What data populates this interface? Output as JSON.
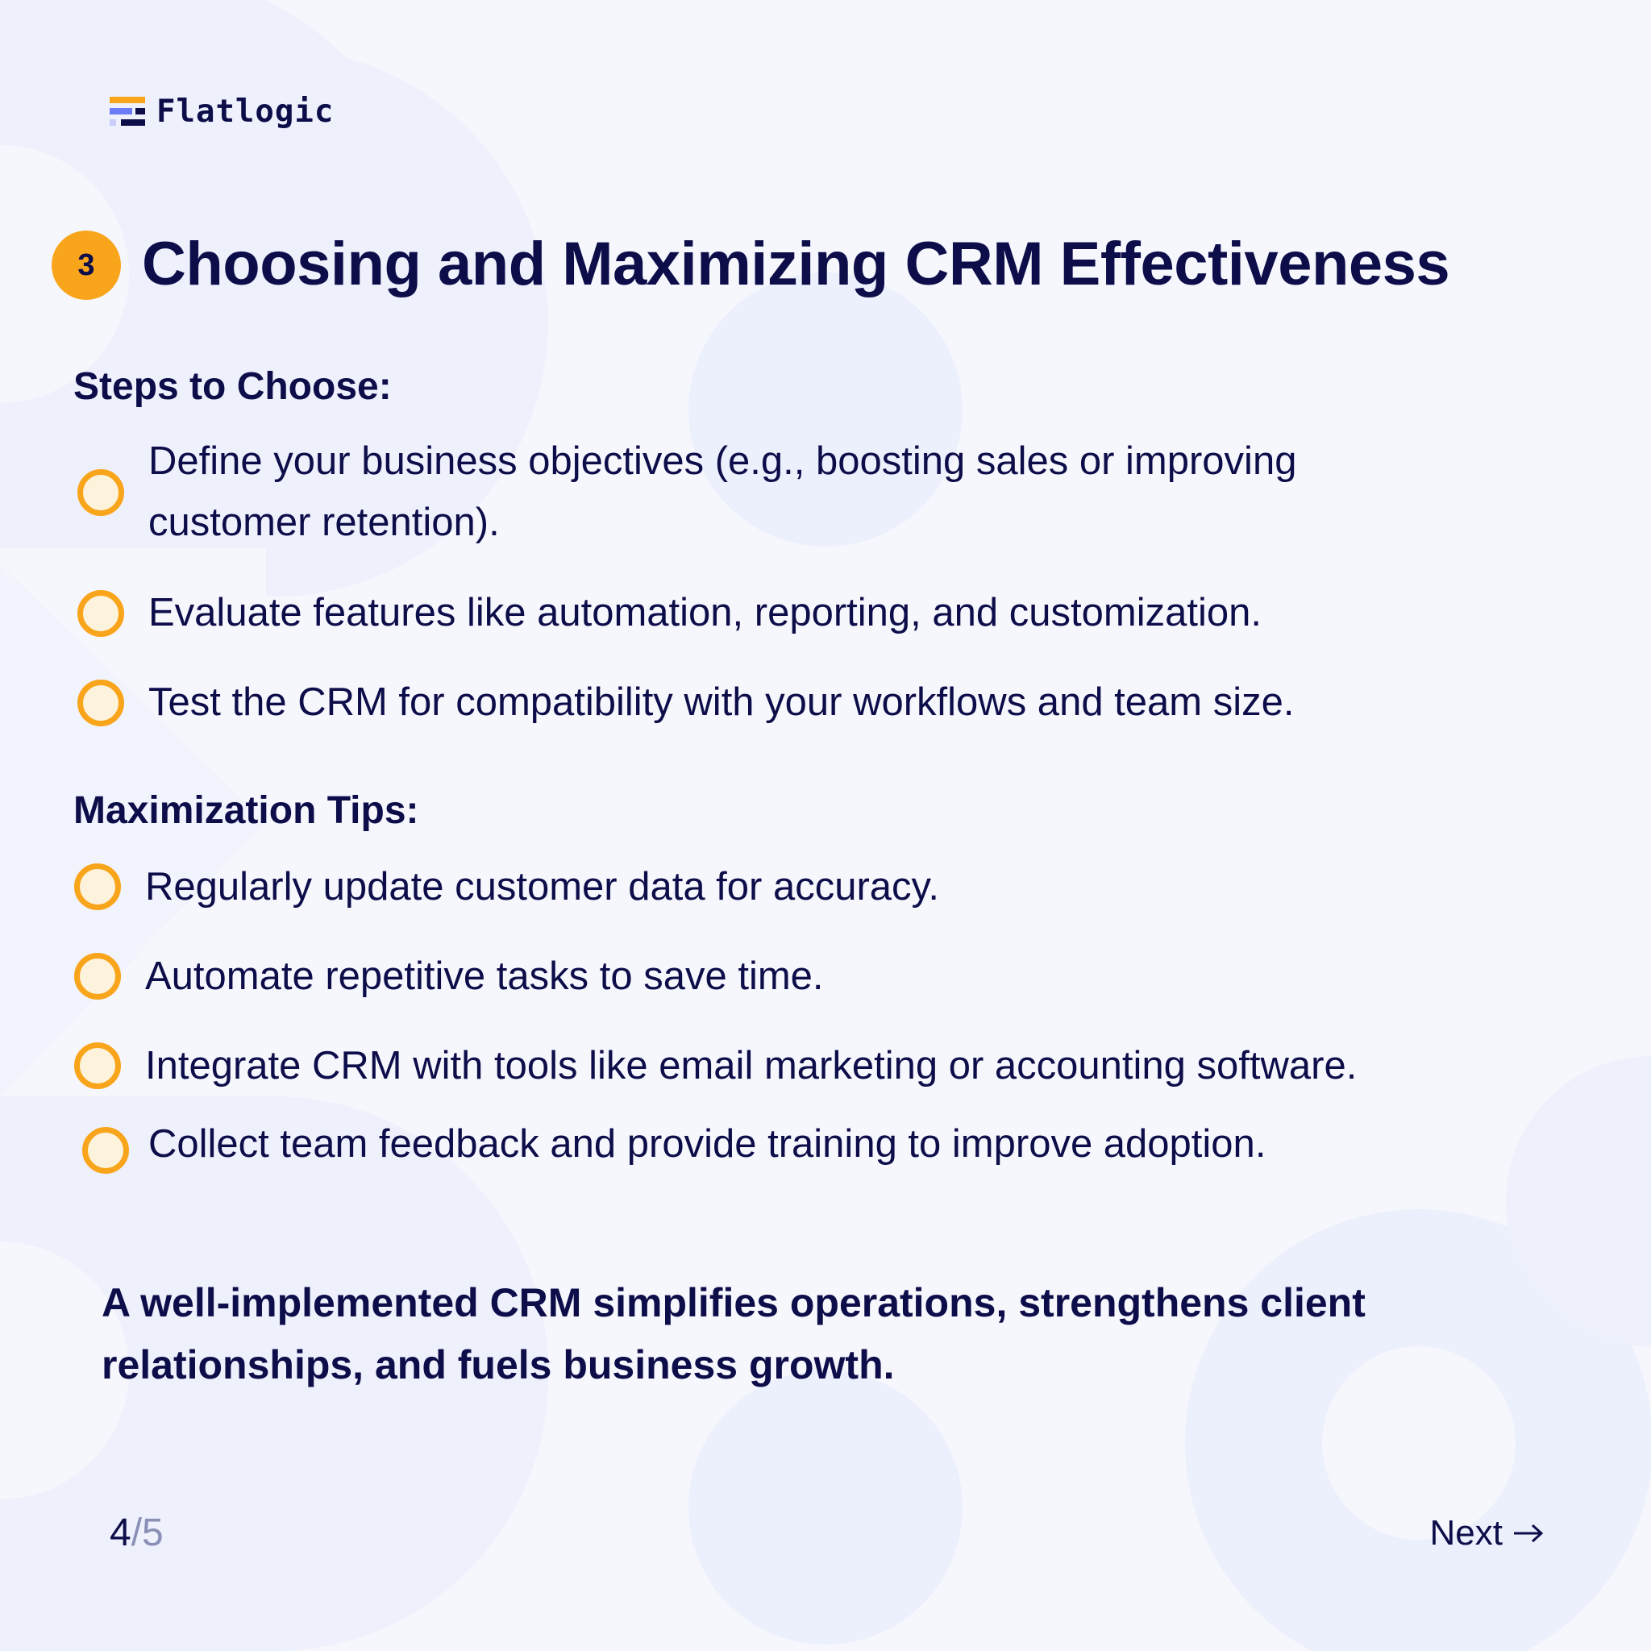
{
  "brand": {
    "name": "Flatlogic",
    "logo_icon": "flatlogic-logo-icon"
  },
  "slide": {
    "number": "3",
    "title": "Choosing and Maximizing CRM Effectiveness"
  },
  "sections": {
    "steps": {
      "heading": "Steps to Choose:",
      "items": [
        {
          "line1": "Define your business objectives (e.g., boosting sales or improving",
          "line2": "customer retention)."
        },
        {
          "text": "Evaluate features like automation, reporting, and customization."
        },
        {
          "text": "Test the CRM for compatibility with your workflows and team size."
        }
      ]
    },
    "tips": {
      "heading": "Maximization Tips:",
      "items": [
        {
          "text": "Regularly update customer data for accuracy."
        },
        {
          "text": "Automate repetitive tasks to save time."
        },
        {
          "text": "Integrate CRM with tools like email marketing or accounting software."
        },
        {
          "text": "Collect team feedback and provide training to improve adoption."
        }
      ]
    }
  },
  "summary": {
    "line1": "A well-implemented CRM simplifies operations, strengthens client",
    "line2": "relationships, and fuels business growth."
  },
  "pager": {
    "current": "4",
    "separator": "/",
    "total": "5"
  },
  "next": {
    "label": "Next",
    "icon": "arrow-right-icon"
  },
  "colors": {
    "accent": "#f9a51c",
    "text": "#0d0d4a",
    "muted": "#8a8fb5",
    "background": "#f6f7fd",
    "shape": "#eceffc"
  }
}
